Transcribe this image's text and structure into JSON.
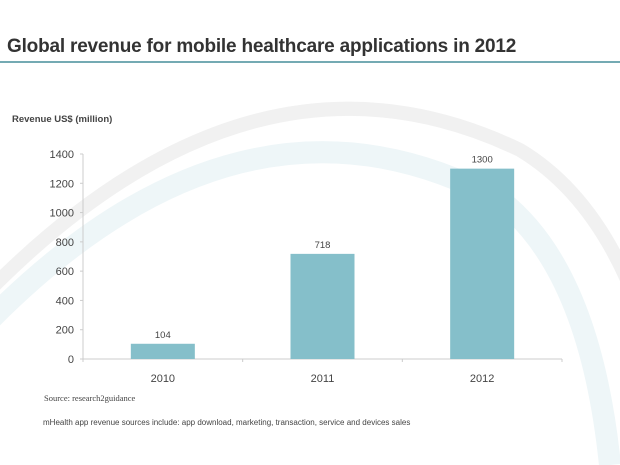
{
  "header": {
    "title": "Global revenue for mobile healthcare applications in 2012"
  },
  "colors": {
    "bar": "#85bfca",
    "title_rule": "#74aab3",
    "axis": "#cccccc",
    "background_arc_light": "#eef7f9",
    "background_arc_gray": "#f2f2f2"
  },
  "footer": {
    "source": "Source: research2guidance",
    "note": "mHealth app revenue sources include: app download, marketing, transaction, service and devices sales"
  },
  "chart_data": {
    "type": "bar",
    "title": "Global revenue for mobile healthcare applications in 2012",
    "xlabel": "",
    "ylabel": "Revenue US$ (million)",
    "categories": [
      "2010",
      "2011",
      "2012"
    ],
    "values": [
      104,
      718,
      1300
    ],
    "data_labels": [
      "104",
      "718",
      "1300"
    ],
    "ylim": [
      0,
      1400
    ],
    "yticks": [
      0,
      200,
      400,
      600,
      800,
      1000,
      1200,
      1400
    ],
    "grid": false,
    "legend": "none"
  }
}
